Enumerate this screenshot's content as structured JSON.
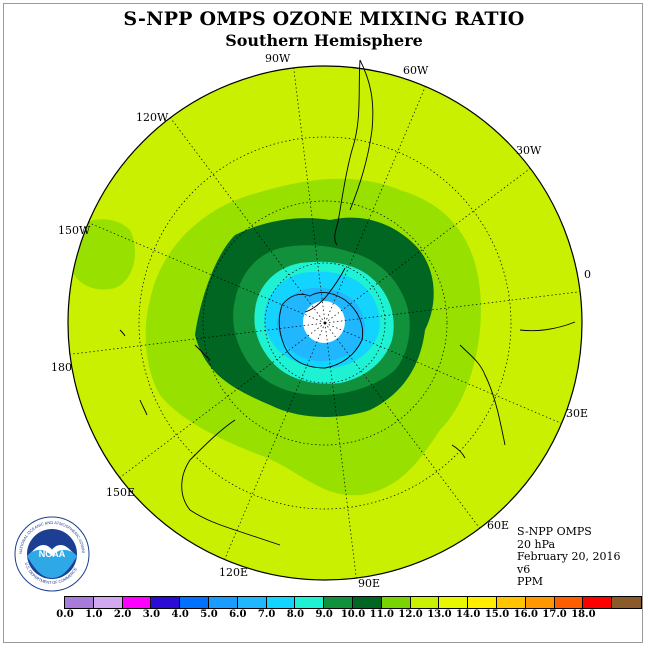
{
  "title": "S-NPP OMPS OZONE MIXING RATIO",
  "subtitle": "Southern Hemisphere",
  "meridian_labels": [
    "90W",
    "60W",
    "30W",
    "0",
    "30E",
    "60E",
    "90E",
    "120E",
    "150E",
    "180",
    "150W",
    "120W"
  ],
  "info": {
    "instrument": "S-NPP OMPS",
    "level": "20 hPa",
    "date": "February 20, 2016",
    "version": "v6",
    "units": "PPM"
  },
  "colorbar": {
    "colors": [
      "#a67bd9",
      "#d2a8f0",
      "#ff00ff",
      "#2b0bd6",
      "#0070ff",
      "#1a9bff",
      "#21b7ff",
      "#13d4ff",
      "#1ef2d2",
      "#11913c",
      "#006622",
      "#7ad401",
      "#c8f000",
      "#e8f700",
      "#ffee00",
      "#ffc400",
      "#ff9800",
      "#ff5e00",
      "#ff0000",
      "#8b5a2b"
    ],
    "tick_labels": [
      "0.0",
      "1.0",
      "2.0",
      "3.0",
      "4.0",
      "5.0",
      "6.0",
      "7.0",
      "8.0",
      "9.0",
      "10.0",
      "11.0",
      "12.0",
      "13.0",
      "14.0",
      "15.0",
      "16.0",
      "17.0",
      "18.0"
    ]
  },
  "logo": {
    "text": "NOAA",
    "ring_text": "NATIONAL OCEANIC AND ATMOSPHERIC ADMINISTRATION",
    "ring_text_bottom": "U.S. DEPARTMENT OF COMMERCE"
  },
  "map_colors": {
    "background_field": "#c8f000",
    "level_11": "#98e000",
    "level_10": "#006622",
    "level_9": "#11913c",
    "level_8": "#1ef2d2",
    "level_7": "#13d4ff",
    "level_6": "#21b7ff",
    "pole_hole": "#ffffff"
  }
}
